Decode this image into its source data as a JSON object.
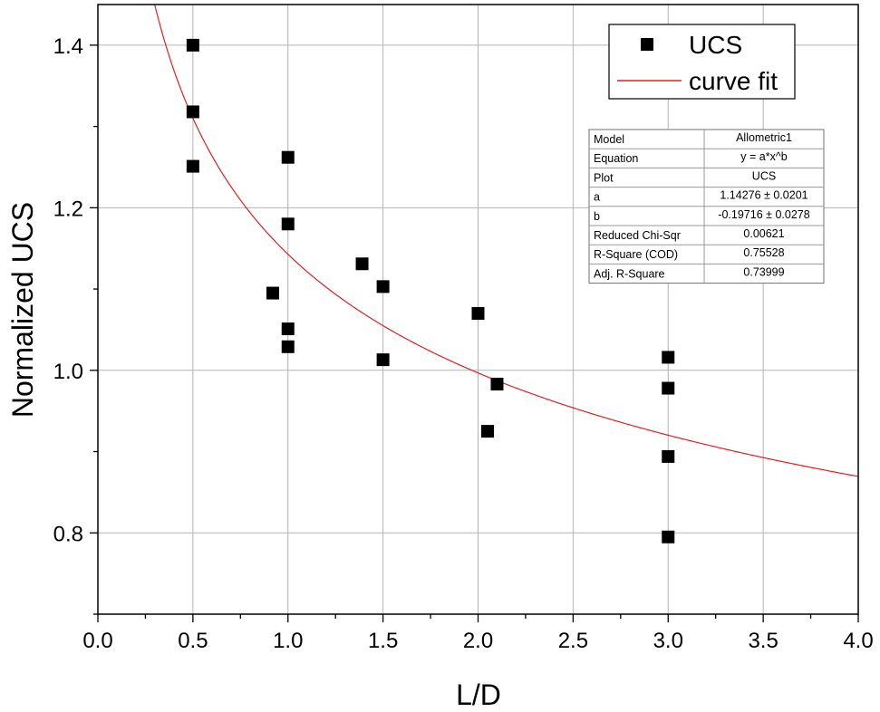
{
  "chart_data": {
    "type": "scatter",
    "title": "",
    "xlabel": "L/D",
    "ylabel": "Normalized UCS",
    "xlim": [
      0.0,
      4.0
    ],
    "ylim": [
      0.7,
      1.45
    ],
    "grid": true,
    "x_ticks": [
      0.0,
      0.5,
      1.0,
      1.5,
      2.0,
      2.5,
      3.0,
      3.5,
      4.0
    ],
    "x_tick_labels": [
      "0.0",
      "0.5",
      "1.0",
      "1.5",
      "2.0",
      "2.5",
      "3.0",
      "3.5",
      "4.0"
    ],
    "y_ticks": [
      0.8,
      1.0,
      1.2,
      1.4
    ],
    "y_tick_labels": [
      "0.8",
      "1.0",
      "1.2",
      "1.4"
    ],
    "series": [
      {
        "name": "UCS",
        "marker": "square",
        "color": "#000000",
        "points": [
          [
            0.5,
            1.4
          ],
          [
            0.5,
            1.318
          ],
          [
            0.5,
            1.251
          ],
          [
            1.0,
            1.262
          ],
          [
            1.0,
            1.18
          ],
          [
            0.92,
            1.095
          ],
          [
            1.0,
            1.051
          ],
          [
            1.0,
            1.029
          ],
          [
            1.39,
            1.131
          ],
          [
            1.5,
            1.103
          ],
          [
            1.5,
            1.013
          ],
          [
            2.0,
            1.07
          ],
          [
            2.05,
            0.925
          ],
          [
            2.1,
            0.983
          ],
          [
            3.0,
            1.016
          ],
          [
            3.0,
            0.978
          ],
          [
            3.0,
            0.894
          ],
          [
            3.0,
            0.795
          ]
        ]
      },
      {
        "name": "curve fit",
        "type": "line",
        "color": "#e02020",
        "model": "allometric",
        "a": 1.14276,
        "b": -0.19716
      }
    ],
    "legend_position": "top-right",
    "stats_table": [
      [
        "Model",
        "Allometric1"
      ],
      [
        "Equation",
        "y = a*x^b"
      ],
      [
        "Plot",
        "UCS"
      ],
      [
        "a",
        "1.14276 ± 0.0201"
      ],
      [
        "b",
        "-0.19716 ± 0.0278"
      ],
      [
        "Reduced Chi-Sqr",
        "0.00621"
      ],
      [
        "R-Square (COD)",
        "0.75528"
      ],
      [
        "Adj. R-Square",
        "0.73999"
      ]
    ]
  }
}
